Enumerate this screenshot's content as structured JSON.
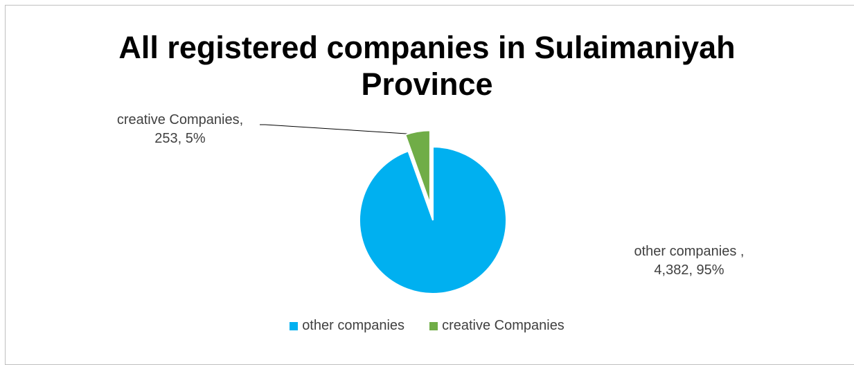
{
  "chart_data": {
    "type": "pie",
    "title_lines": [
      "All registered companies in Sulaimaniyah",
      "Province"
    ],
    "slices": [
      {
        "name": "other companies",
        "value": 4382,
        "percent": "95%",
        "color": "#00B0F0",
        "label_line1": "other companies ,",
        "label_line2": "4,382, 95%"
      },
      {
        "name": "creative Companies",
        "value": 253,
        "percent": "5%",
        "color": "#70AD47",
        "label_line1": "creative Companies,",
        "label_line2": "253, 5%",
        "exploded": true
      }
    ],
    "legend_position": "bottom",
    "legend": [
      "other companies",
      "creative Companies"
    ]
  }
}
